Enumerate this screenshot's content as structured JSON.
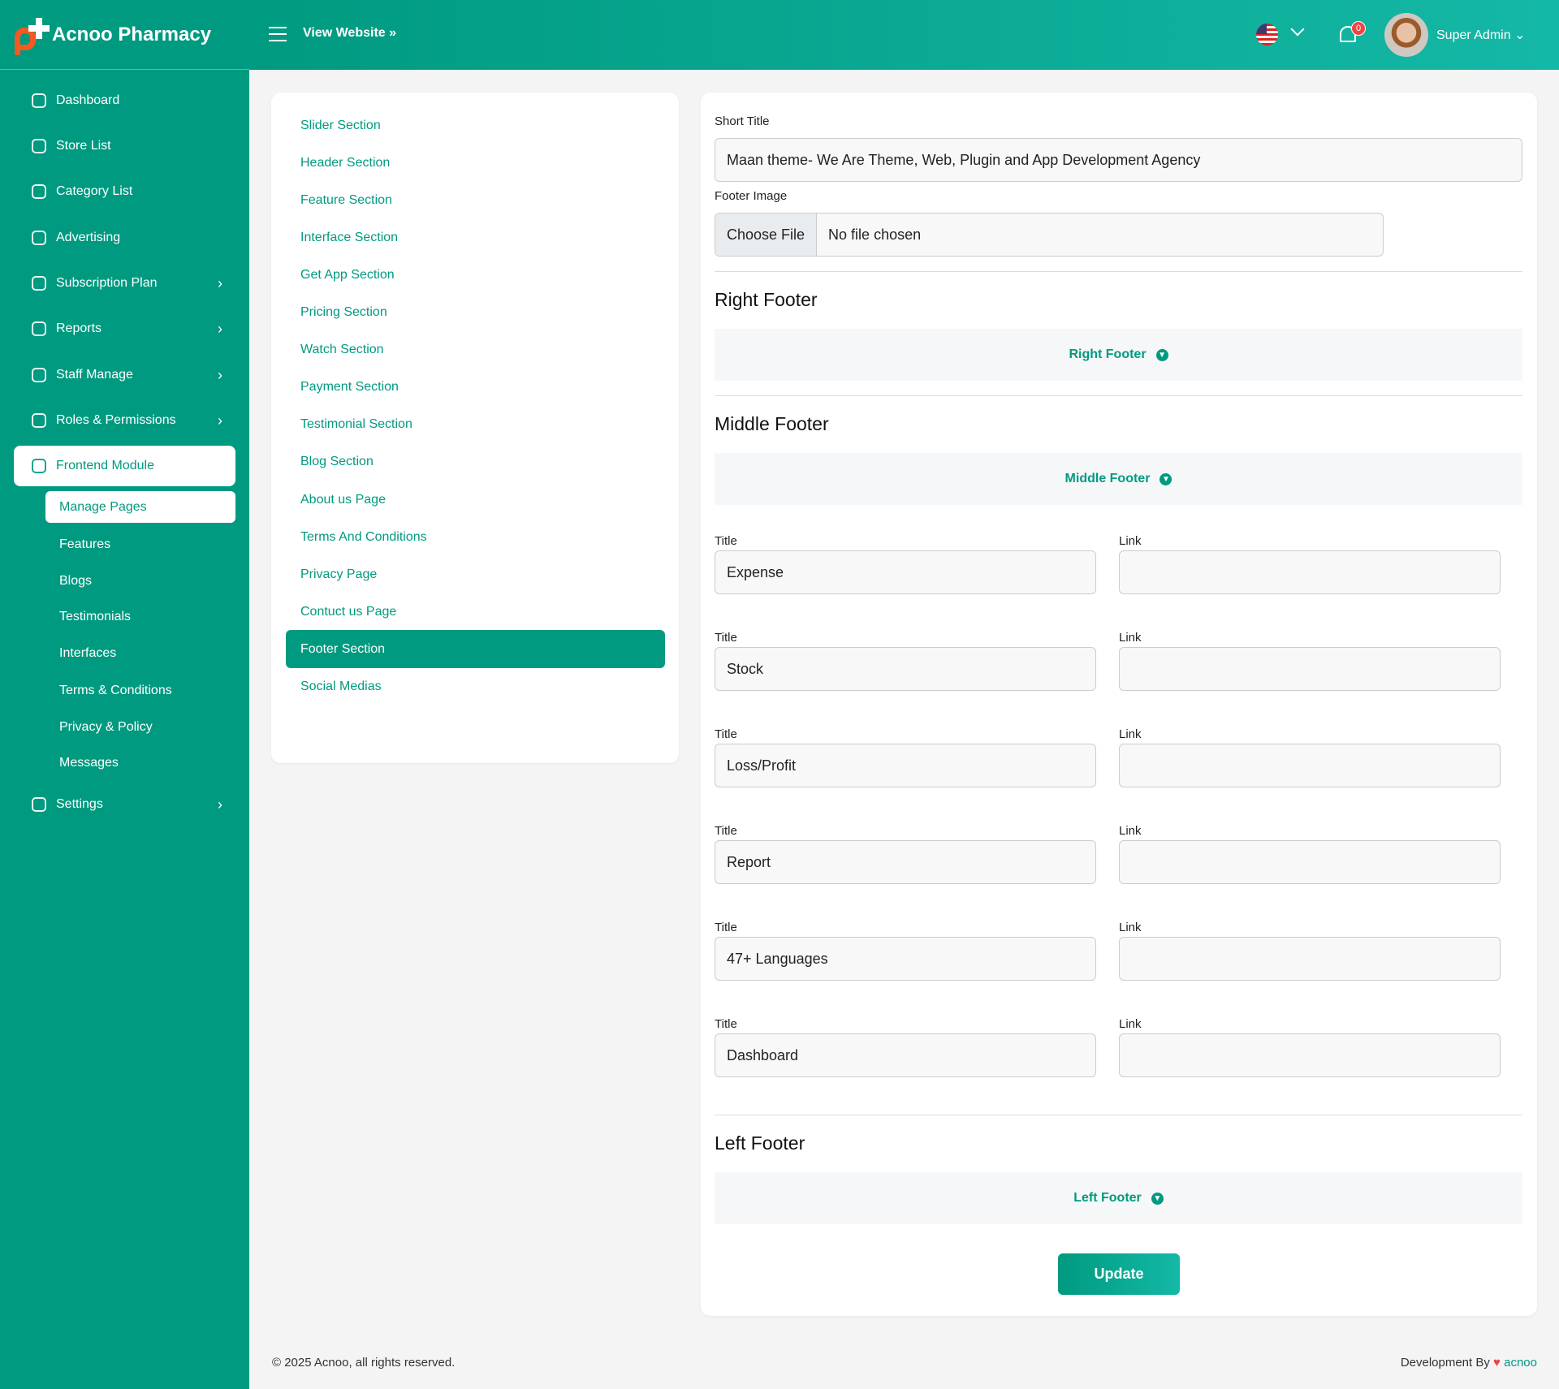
{
  "brand": {
    "name": "Acnoo Pharmacy"
  },
  "topbar": {
    "view_website": "View Website",
    "notification_count": "0",
    "user_name": "Super Admin",
    "language": "us-flag"
  },
  "sidebar": {
    "items": [
      {
        "label": "Dashboard",
        "arrow": false
      },
      {
        "label": "Store List",
        "arrow": false
      },
      {
        "label": "Category List",
        "arrow": false
      },
      {
        "label": "Advertising",
        "arrow": false
      },
      {
        "label": "Subscription Plan",
        "arrow": true
      },
      {
        "label": "Reports",
        "arrow": true
      },
      {
        "label": "Staff Manage",
        "arrow": true
      },
      {
        "label": "Roles & Permissions",
        "arrow": true
      },
      {
        "label": "Frontend Module",
        "arrow": false
      }
    ],
    "subitems": [
      "Manage Pages",
      "Features",
      "Blogs",
      "Testimonials",
      "Interfaces",
      "Terms & Conditions",
      "Privacy & Policy",
      "Messages"
    ],
    "settings": "Settings"
  },
  "sections": [
    "Slider Section",
    "Header Section",
    "Feature Section",
    "Interface Section",
    "Get App Section",
    "Pricing Section",
    "Watch Section",
    "Payment Section",
    "Testimonial Section",
    "Blog Section",
    "About us Page",
    "Terms And Conditions",
    "Privacy Page",
    "Contuct us Page",
    "Footer Section",
    "Social Medias"
  ],
  "form": {
    "short_title_label": "Short Title",
    "short_title_value": "Maan theme- We Are Theme, Web, Plugin and App Development Agency",
    "footer_image_label": "Footer Image",
    "choose_file": "Choose File",
    "no_file": "No file chosen",
    "right_footer_heading": "Right Footer",
    "right_footer_toggle": "Right Footer",
    "middle_footer_heading": "Middle Footer",
    "middle_footer_toggle": "Middle Footer",
    "title_label": "Title",
    "link_label": "Link",
    "rows": [
      {
        "title": "Expense",
        "link": ""
      },
      {
        "title": "Stock",
        "link": ""
      },
      {
        "title": "Loss/Profit",
        "link": ""
      },
      {
        "title": "Report",
        "link": ""
      },
      {
        "title": "47+ Languages",
        "link": ""
      },
      {
        "title": "Dashboard",
        "link": ""
      }
    ],
    "left_footer_heading": "Left Footer",
    "left_footer_toggle": "Left Footer",
    "update": "Update"
  },
  "footer": {
    "copyright": "© 2025 Acnoo, all rights reserved.",
    "dev_by": "Development By",
    "dev_name": "acnoo"
  },
  "colors": {
    "primary": "#009a80",
    "accent": "#14b8a6",
    "badge": "#ef4444",
    "logo": "#f15a22"
  }
}
